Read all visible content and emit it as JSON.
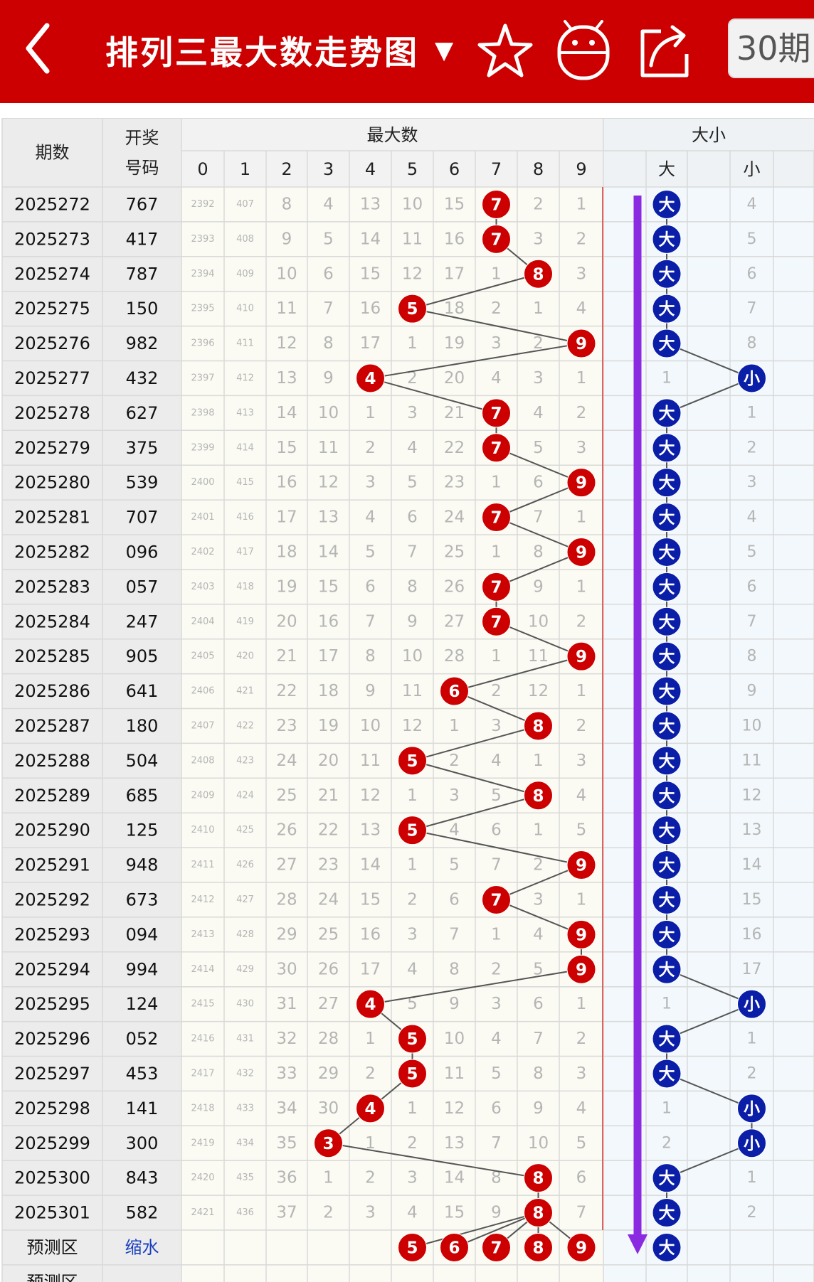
{
  "header": {
    "title": "排列三最大数走势图",
    "dropdown_symbol": "▼",
    "period_button": "30期",
    "icons": [
      "back-arrow-icon",
      "star-icon",
      "android-icon",
      "share-icon"
    ]
  },
  "table": {
    "col_period": "期数",
    "col_draw_line1": "开奖",
    "col_draw_line2": "号码",
    "group_max": "最大数",
    "group_size": "大小",
    "digit_headers": [
      "0",
      "1",
      "2",
      "3",
      "4",
      "5",
      "6",
      "7",
      "8",
      "9"
    ],
    "size_headers": [
      "大",
      "",
      "小",
      ""
    ],
    "rows": [
      {
        "period": "2025272",
        "draw": "767",
        "max": 7,
        "cells": [
          "2392",
          "407",
          "8",
          "4",
          "13",
          "10",
          "15",
          "7",
          "2",
          "1"
        ],
        "size": "大",
        "size_miss": "4"
      },
      {
        "period": "2025273",
        "draw": "417",
        "max": 7,
        "cells": [
          "2393",
          "408",
          "9",
          "5",
          "14",
          "11",
          "16",
          "7",
          "3",
          "2"
        ],
        "size": "大",
        "size_miss": "5"
      },
      {
        "period": "2025274",
        "draw": "787",
        "max": 8,
        "cells": [
          "2394",
          "409",
          "10",
          "6",
          "15",
          "12",
          "17",
          "1",
          "8",
          "3"
        ],
        "size": "大",
        "size_miss": "6"
      },
      {
        "period": "2025275",
        "draw": "150",
        "max": 5,
        "cells": [
          "2395",
          "410",
          "11",
          "7",
          "16",
          "5",
          "18",
          "2",
          "1",
          "4"
        ],
        "size": "大",
        "size_miss": "7"
      },
      {
        "period": "2025276",
        "draw": "982",
        "max": 9,
        "cells": [
          "2396",
          "411",
          "12",
          "8",
          "17",
          "1",
          "19",
          "3",
          "2",
          "9"
        ],
        "size": "大",
        "size_miss": "8"
      },
      {
        "period": "2025277",
        "draw": "432",
        "max": 4,
        "cells": [
          "2397",
          "412",
          "13",
          "9",
          "4",
          "2",
          "20",
          "4",
          "3",
          "1"
        ],
        "size": "小",
        "size_miss": "1"
      },
      {
        "period": "2025278",
        "draw": "627",
        "max": 7,
        "cells": [
          "2398",
          "413",
          "14",
          "10",
          "1",
          "3",
          "21",
          "7",
          "4",
          "2"
        ],
        "size": "大",
        "size_miss": "1"
      },
      {
        "period": "2025279",
        "draw": "375",
        "max": 7,
        "cells": [
          "2399",
          "414",
          "15",
          "11",
          "2",
          "4",
          "22",
          "7",
          "5",
          "3"
        ],
        "size": "大",
        "size_miss": "2"
      },
      {
        "period": "2025280",
        "draw": "539",
        "max": 9,
        "cells": [
          "2400",
          "415",
          "16",
          "12",
          "3",
          "5",
          "23",
          "1",
          "6",
          "9"
        ],
        "size": "大",
        "size_miss": "3"
      },
      {
        "period": "2025281",
        "draw": "707",
        "max": 7,
        "cells": [
          "2401",
          "416",
          "17",
          "13",
          "4",
          "6",
          "24",
          "7",
          "7",
          "1"
        ],
        "size": "大",
        "size_miss": "4"
      },
      {
        "period": "2025282",
        "draw": "096",
        "max": 9,
        "cells": [
          "2402",
          "417",
          "18",
          "14",
          "5",
          "7",
          "25",
          "1",
          "8",
          "9"
        ],
        "size": "大",
        "size_miss": "5"
      },
      {
        "period": "2025283",
        "draw": "057",
        "max": 7,
        "cells": [
          "2403",
          "418",
          "19",
          "15",
          "6",
          "8",
          "26",
          "7",
          "9",
          "1"
        ],
        "size": "大",
        "size_miss": "6"
      },
      {
        "period": "2025284",
        "draw": "247",
        "max": 7,
        "cells": [
          "2404",
          "419",
          "20",
          "16",
          "7",
          "9",
          "27",
          "7",
          "10",
          "2"
        ],
        "size": "大",
        "size_miss": "7"
      },
      {
        "period": "2025285",
        "draw": "905",
        "max": 9,
        "cells": [
          "2405",
          "420",
          "21",
          "17",
          "8",
          "10",
          "28",
          "1",
          "11",
          "9"
        ],
        "size": "大",
        "size_miss": "8"
      },
      {
        "period": "2025286",
        "draw": "641",
        "max": 6,
        "cells": [
          "2406",
          "421",
          "22",
          "18",
          "9",
          "11",
          "6",
          "2",
          "12",
          "1"
        ],
        "size": "大",
        "size_miss": "9"
      },
      {
        "period": "2025287",
        "draw": "180",
        "max": 8,
        "cells": [
          "2407",
          "422",
          "23",
          "19",
          "10",
          "12",
          "1",
          "3",
          "8",
          "2"
        ],
        "size": "大",
        "size_miss": "10"
      },
      {
        "period": "2025288",
        "draw": "504",
        "max": 5,
        "cells": [
          "2408",
          "423",
          "24",
          "20",
          "11",
          "5",
          "2",
          "4",
          "1",
          "3"
        ],
        "size": "大",
        "size_miss": "11"
      },
      {
        "period": "2025289",
        "draw": "685",
        "max": 8,
        "cells": [
          "2409",
          "424",
          "25",
          "21",
          "12",
          "1",
          "3",
          "5",
          "8",
          "4"
        ],
        "size": "大",
        "size_miss": "12"
      },
      {
        "period": "2025290",
        "draw": "125",
        "max": 5,
        "cells": [
          "2410",
          "425",
          "26",
          "22",
          "13",
          "5",
          "4",
          "6",
          "1",
          "5"
        ],
        "size": "大",
        "size_miss": "13"
      },
      {
        "period": "2025291",
        "draw": "948",
        "max": 9,
        "cells": [
          "2411",
          "426",
          "27",
          "23",
          "14",
          "1",
          "5",
          "7",
          "2",
          "9"
        ],
        "size": "大",
        "size_miss": "14"
      },
      {
        "period": "2025292",
        "draw": "673",
        "max": 7,
        "cells": [
          "2412",
          "427",
          "28",
          "24",
          "15",
          "2",
          "6",
          "7",
          "3",
          "1"
        ],
        "size": "大",
        "size_miss": "15"
      },
      {
        "period": "2025293",
        "draw": "094",
        "max": 9,
        "cells": [
          "2413",
          "428",
          "29",
          "25",
          "16",
          "3",
          "7",
          "1",
          "4",
          "9"
        ],
        "size": "大",
        "size_miss": "16"
      },
      {
        "period": "2025294",
        "draw": "994",
        "max": 9,
        "cells": [
          "2414",
          "429",
          "30",
          "26",
          "17",
          "4",
          "8",
          "2",
          "5",
          "9"
        ],
        "size": "大",
        "size_miss": "17"
      },
      {
        "period": "2025295",
        "draw": "124",
        "max": 4,
        "cells": [
          "2415",
          "430",
          "31",
          "27",
          "4",
          "5",
          "9",
          "3",
          "6",
          "1"
        ],
        "size": "小",
        "size_miss": "1"
      },
      {
        "period": "2025296",
        "draw": "052",
        "max": 5,
        "cells": [
          "2416",
          "431",
          "32",
          "28",
          "1",
          "5",
          "10",
          "4",
          "7",
          "2"
        ],
        "size": "大",
        "size_miss": "1"
      },
      {
        "period": "2025297",
        "draw": "453",
        "max": 5,
        "cells": [
          "2417",
          "432",
          "33",
          "29",
          "2",
          "5",
          "11",
          "5",
          "8",
          "3"
        ],
        "size": "大",
        "size_miss": "2"
      },
      {
        "period": "2025298",
        "draw": "141",
        "max": 4,
        "cells": [
          "2418",
          "433",
          "34",
          "30",
          "4",
          "1",
          "12",
          "6",
          "9",
          "4"
        ],
        "size": "小",
        "size_miss": "1"
      },
      {
        "period": "2025299",
        "draw": "300",
        "max": 3,
        "cells": [
          "2419",
          "434",
          "35",
          "3",
          "1",
          "2",
          "13",
          "7",
          "10",
          "5"
        ],
        "size": "小",
        "size_miss": "2"
      },
      {
        "period": "2025300",
        "draw": "843",
        "max": 8,
        "cells": [
          "2420",
          "435",
          "36",
          "1",
          "2",
          "3",
          "14",
          "8",
          "8",
          "6"
        ],
        "size": "大",
        "size_miss": "1"
      },
      {
        "period": "2025301",
        "draw": "582",
        "max": 8,
        "cells": [
          "2421",
          "436",
          "37",
          "2",
          "3",
          "4",
          "15",
          "9",
          "8",
          "7"
        ],
        "size": "大",
        "size_miss": "2"
      }
    ],
    "prediction_row": {
      "label": "预测区",
      "action": "缩水",
      "balls": [
        5,
        6,
        7,
        8,
        9
      ],
      "size": "大"
    },
    "prediction_row_2_label": "预测区"
  },
  "colors": {
    "header_red": "#cc0000",
    "ball_red": "#cc0000",
    "ball_blue": "#0a1ea8",
    "trend_arrow": "#8a2be2",
    "line_gray": "#555555",
    "miss_text": "#b5b5b5",
    "grid_line": "#d9d9d9",
    "label_bg": "#ececec",
    "digit_bg": "#fbfbf3",
    "size_bg": "#f2f8fb"
  }
}
